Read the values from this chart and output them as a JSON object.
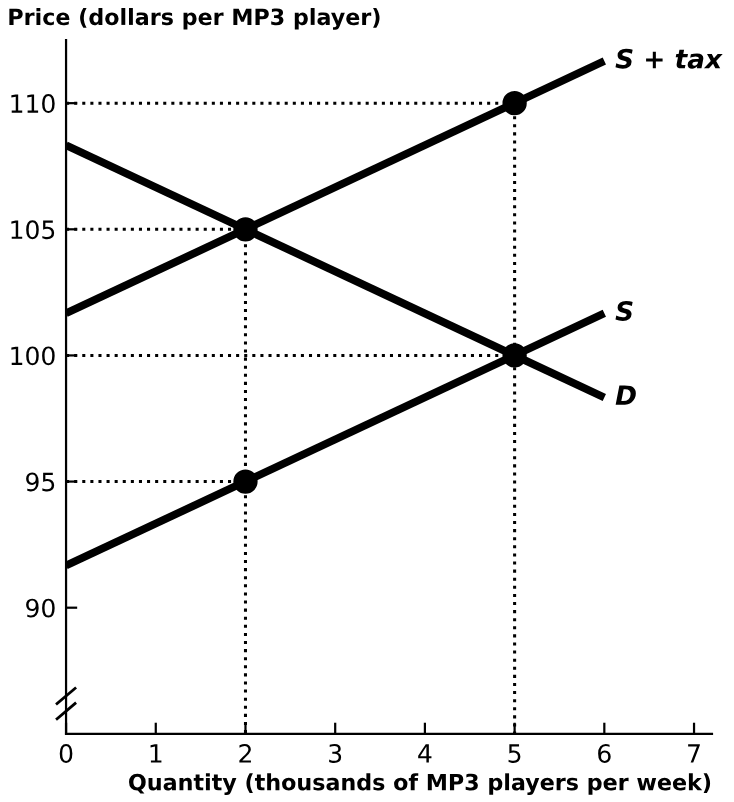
{
  "chart_data": {
    "type": "line",
    "xlabel": "Quantity (thousands of MP3 players per week)",
    "ylabel": "Price (dollars per MP3 player)",
    "xlim": [
      0,
      7.2
    ],
    "xticks": [
      0,
      1,
      2,
      3,
      4,
      5,
      6,
      7
    ],
    "ylim": [
      85,
      112.5
    ],
    "yticks": [
      90,
      95,
      100,
      105,
      110
    ],
    "grid": false,
    "legend": false,
    "marker": "none",
    "line_style": "solid",
    "series": [
      {
        "name": "S + tax",
        "color": "#000000",
        "x": [
          0,
          6
        ],
        "values": [
          101.67,
          111.67
        ]
      },
      {
        "name": "S",
        "color": "#000000",
        "x": [
          0,
          6
        ],
        "values": [
          91.67,
          101.67
        ]
      },
      {
        "name": "D",
        "color": "#000000",
        "x": [
          0,
          6
        ],
        "values": [
          108.33,
          98.33
        ]
      },
      {
        "type": "line",
        "line_style": "dotted",
        "color": "#000000",
        "x": [
          0,
          5,
          5
        ],
        "values": [
          110,
          110,
          85
        ]
      },
      {
        "type": "line",
        "line_style": "dotted",
        "color": "#000000",
        "x": [
          0,
          2,
          2
        ],
        "values": [
          105,
          105,
          85
        ]
      },
      {
        "type": "line",
        "line_style": "dotted",
        "color": "#000000",
        "x": [
          0,
          5
        ],
        "values": [
          100,
          100
        ]
      },
      {
        "type": "line",
        "line_style": "dotted",
        "color": "#000000",
        "x": [
          0,
          2
        ],
        "values": [
          95,
          95
        ]
      },
      {
        "type": "scatter",
        "marker": "circle",
        "color": "#000000",
        "x": [
          2,
          2,
          5,
          5
        ],
        "values": [
          95,
          105,
          100,
          110
        ]
      }
    ]
  }
}
